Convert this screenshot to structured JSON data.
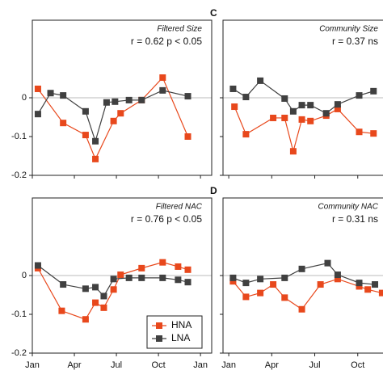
{
  "chart_data": [
    {
      "type": "line",
      "title": "Filtered Size",
      "annotation": "r = 0.62 p < 0.05",
      "xlim": [
        0,
        12.8
      ],
      "ylim": [
        -0.2,
        0.2
      ],
      "yticks": [
        0,
        -0.1,
        -0.2
      ],
      "xticklabels": false,
      "xticks": [
        {
          "value": 0,
          "label": "Jan"
        },
        {
          "value": 3,
          "label": "Apr"
        },
        {
          "value": 6,
          "label": "Jul"
        },
        {
          "value": 9,
          "label": "Oct"
        },
        {
          "value": 12,
          "label": "Jan"
        }
      ],
      "series": [
        {
          "name": "HNA",
          "color": "#e8481c",
          "x": [
            0.4,
            2.2,
            3.8,
            4.5,
            5.8,
            6.3,
            7.8,
            9.3,
            11.1
          ],
          "values": [
            0.023,
            -0.065,
            -0.096,
            -0.158,
            -0.06,
            -0.04,
            -0.006,
            0.052,
            -0.1
          ]
        },
        {
          "name": "LNA",
          "color": "#404040",
          "x": [
            0.4,
            1.3,
            2.2,
            3.8,
            4.5,
            5.3,
            5.9,
            6.9,
            7.8,
            9.3,
            11.1
          ],
          "values": [
            -0.042,
            0.012,
            0.006,
            -0.035,
            -0.112,
            -0.012,
            -0.01,
            -0.006,
            -0.006,
            0.019,
            0.004
          ]
        }
      ]
    },
    {
      "type": "line",
      "panel": "C",
      "title": "Community Size",
      "annotation": "r = 0.37 ns",
      "xlim": [
        -0.4,
        11.1
      ],
      "ylim": [
        -0.2,
        0.2
      ],
      "yticks": [
        0,
        -0.1,
        -0.2
      ],
      "xticklabels": false,
      "yticklabels": false,
      "xticks": [
        {
          "value": 0,
          "label": "Jan"
        },
        {
          "value": 3,
          "label": "Apr"
        },
        {
          "value": 6,
          "label": "Jul"
        },
        {
          "value": 9,
          "label": "Oct"
        }
      ],
      "series": [
        {
          "name": "HNA",
          "color": "#e8481c",
          "x": [
            0.4,
            1.2,
            3.1,
            3.9,
            4.5,
            5.1,
            5.7,
            6.8,
            7.6,
            9.1,
            10.1
          ],
          "values": [
            -0.023,
            -0.094,
            -0.052,
            -0.052,
            -0.138,
            -0.056,
            -0.06,
            -0.046,
            -0.029,
            -0.088,
            -0.092
          ]
        },
        {
          "name": "LNA",
          "color": "#404040",
          "x": [
            0.3,
            1.2,
            2.2,
            3.9,
            4.5,
            5.1,
            5.7,
            6.8,
            7.6,
            9.1,
            10.1
          ],
          "values": [
            0.023,
            0.002,
            0.044,
            -0.002,
            -0.035,
            -0.019,
            -0.019,
            -0.04,
            -0.017,
            0.006,
            0.017
          ]
        }
      ]
    },
    {
      "type": "line",
      "title": "Filtered NAC",
      "annotation": "r = 0.76 p < 0.05",
      "legend": "lower right",
      "xlim": [
        0,
        12.8
      ],
      "ylim": [
        -0.2,
        0.2
      ],
      "yticks": [
        0,
        -0.1,
        -0.2
      ],
      "xticks": [
        {
          "value": 0,
          "label": "Jan"
        },
        {
          "value": 3,
          "label": "Apr"
        },
        {
          "value": 6,
          "label": "Jul"
        },
        {
          "value": 9,
          "label": "Oct"
        },
        {
          "value": 12,
          "label": "Jan"
        }
      ],
      "series": [
        {
          "name": "HNA",
          "color": "#e8481c",
          "x": [
            0.4,
            2.1,
            3.8,
            4.5,
            5.1,
            5.8,
            6.3,
            7.8,
            9.3,
            10.4,
            11.1
          ],
          "values": [
            0.019,
            -0.091,
            -0.113,
            -0.07,
            -0.083,
            -0.036,
            0.002,
            0.019,
            0.034,
            0.023,
            0.015
          ]
        },
        {
          "name": "LNA",
          "color": "#404040",
          "x": [
            0.4,
            2.2,
            3.8,
            4.5,
            5.1,
            5.8,
            6.9,
            7.8,
            9.3,
            10.4,
            11.1
          ],
          "values": [
            0.026,
            -0.023,
            -0.034,
            -0.03,
            -0.053,
            -0.009,
            -0.006,
            -0.006,
            -0.006,
            -0.011,
            -0.017
          ]
        }
      ]
    },
    {
      "type": "line",
      "panel": "D",
      "title": "Community NAC",
      "annotation": "r = 0.31 ns",
      "yticklabels": false,
      "xlim": [
        -0.4,
        11.1
      ],
      "ylim": [
        -0.2,
        0.2
      ],
      "yticks": [
        0,
        -0.1,
        -0.2
      ],
      "xticks": [
        {
          "value": 0,
          "label": "Jan"
        },
        {
          "value": 3,
          "label": "Apr"
        },
        {
          "value": 6,
          "label": "Jul"
        },
        {
          "value": 9,
          "label": "Oct"
        }
      ],
      "series": [
        {
          "name": "HNA",
          "color": "#e8481c",
          "x": [
            0.3,
            1.2,
            2.2,
            3.1,
            3.9,
            5.1,
            6.4,
            7.6,
            9.1,
            9.7,
            10.7
          ],
          "values": [
            -0.015,
            -0.055,
            -0.045,
            -0.023,
            -0.057,
            -0.087,
            -0.023,
            -0.009,
            -0.028,
            -0.036,
            -0.045
          ]
        },
        {
          "name": "LNA",
          "color": "#404040",
          "x": [
            0.3,
            1.2,
            2.2,
            3.9,
            5.1,
            6.9,
            7.6,
            9.1,
            10.2
          ],
          "values": [
            -0.006,
            -0.019,
            -0.009,
            -0.006,
            0.017,
            0.032,
            0.002,
            -0.019,
            -0.023
          ]
        }
      ]
    }
  ]
}
